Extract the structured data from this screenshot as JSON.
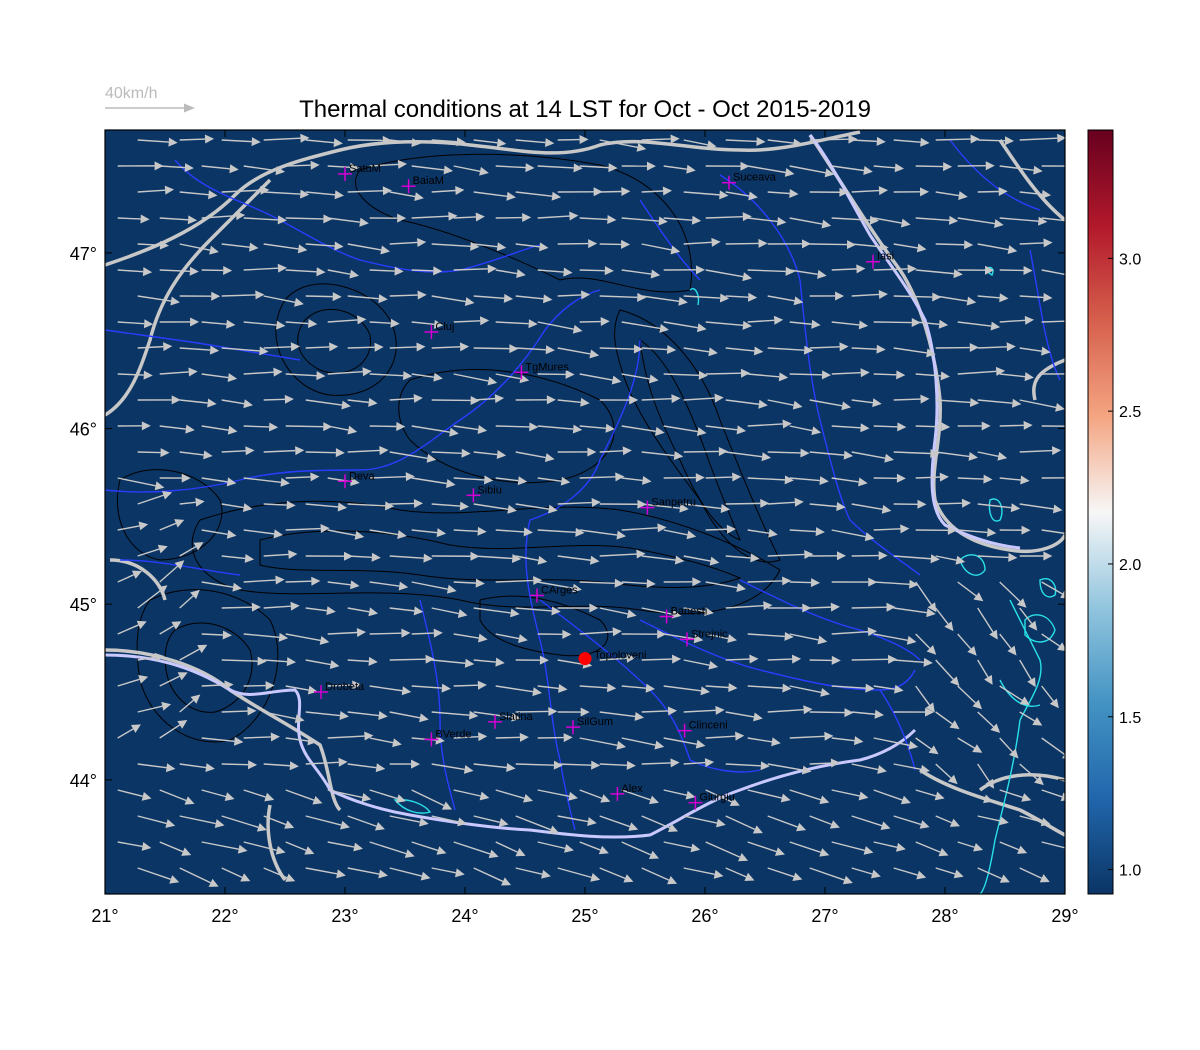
{
  "title": "Thermal conditions at 14 LST for Oct - Oct  2015-2019",
  "reference_vector": {
    "label": "40km/h",
    "speed_kmh": 40,
    "color": "#bbbbbb"
  },
  "map": {
    "lon_range": [
      21,
      29
    ],
    "lat_range": [
      43.35,
      47.7
    ],
    "background_color": "#0b3565",
    "x_ticks": [
      {
        "value": 21,
        "label": "21°"
      },
      {
        "value": 22,
        "label": "22°"
      },
      {
        "value": 23,
        "label": "23°"
      },
      {
        "value": 24,
        "label": "24°"
      },
      {
        "value": 25,
        "label": "25°"
      },
      {
        "value": 26,
        "label": "26°"
      },
      {
        "value": 27,
        "label": "27°"
      },
      {
        "value": 28,
        "label": "28°"
      },
      {
        "value": 29,
        "label": "29°"
      }
    ],
    "y_ticks": [
      {
        "value": 44,
        "label": "44°"
      },
      {
        "value": 45,
        "label": "45°"
      },
      {
        "value": 46,
        "label": "46°"
      },
      {
        "value": 47,
        "label": "47°"
      }
    ],
    "colors": {
      "border": "#c8c8c8",
      "river": "#2a3dff",
      "danube": "#c9c9ff",
      "lakes": "#29e0e8",
      "contour": "#000000",
      "station": "#d400d4",
      "highlight": "#ff0000",
      "arrow": "#c8c8c8"
    }
  },
  "colorbar": {
    "range": [
      0.92,
      3.42
    ],
    "colors": [
      "#0b3565",
      "#2166ac",
      "#4393c3",
      "#92c5de",
      "#f7f7f7",
      "#f4a582",
      "#d6604d",
      "#b2182b",
      "#67001f"
    ],
    "ticks": [
      {
        "value": 1.0,
        "label": "1.0"
      },
      {
        "value": 1.5,
        "label": "1.5"
      },
      {
        "value": 2.0,
        "label": "2.0"
      },
      {
        "value": 2.5,
        "label": "2.5"
      },
      {
        "value": 3.0,
        "label": "3.0"
      }
    ]
  },
  "stations": [
    {
      "name": "SatuM",
      "lon": 23.0,
      "lat": 47.45
    },
    {
      "name": "BaiaM",
      "lon": 23.53,
      "lat": 47.38
    },
    {
      "name": "Suceava",
      "lon": 26.2,
      "lat": 47.4
    },
    {
      "name": "Iasi",
      "lon": 27.4,
      "lat": 46.95
    },
    {
      "name": "Cluj",
      "lon": 23.72,
      "lat": 46.55
    },
    {
      "name": "TgMures",
      "lon": 24.47,
      "lat": 46.32
    },
    {
      "name": "Deva",
      "lon": 23.0,
      "lat": 45.7
    },
    {
      "name": "Sibiu",
      "lon": 24.07,
      "lat": 45.62
    },
    {
      "name": "Sanpetru",
      "lon": 25.52,
      "lat": 45.55
    },
    {
      "name": "CArges",
      "lon": 24.6,
      "lat": 45.05
    },
    {
      "name": "Banesti",
      "lon": 25.68,
      "lat": 44.93
    },
    {
      "name": "Strejnic",
      "lon": 25.85,
      "lat": 44.8
    },
    {
      "name": "Drobeta",
      "lon": 22.8,
      "lat": 44.5
    },
    {
      "name": "Slatina",
      "lon": 24.25,
      "lat": 44.33
    },
    {
      "name": "SilGum",
      "lon": 24.9,
      "lat": 44.3
    },
    {
      "name": "BVerde",
      "lon": 23.72,
      "lat": 44.23
    },
    {
      "name": "Clinceni",
      "lon": 25.83,
      "lat": 44.28
    },
    {
      "name": "Alex",
      "lon": 25.27,
      "lat": 43.92
    },
    {
      "name": "Giurgiu",
      "lon": 25.92,
      "lat": 43.87
    }
  ],
  "highlight_station": {
    "name": "Topoloveni",
    "lon": 25.0,
    "lat": 44.69
  }
}
